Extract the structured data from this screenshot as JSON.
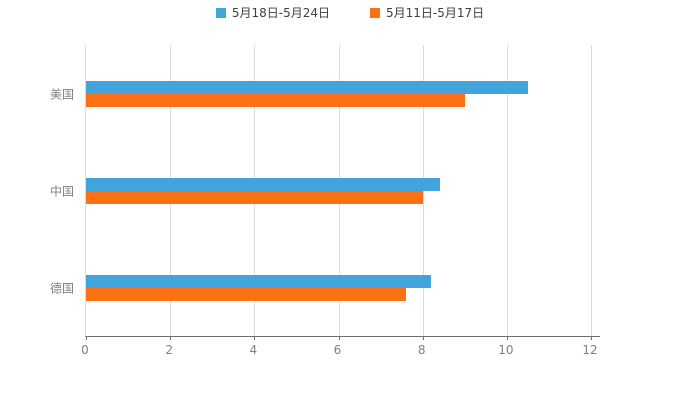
{
  "chart_data": {
    "type": "bar",
    "orientation": "horizontal",
    "title": "",
    "xlabel": "",
    "ylabel": "",
    "categories": [
      "美国",
      "中国",
      "德国"
    ],
    "series": [
      {
        "name": "5月18日-5月24日",
        "color": "#41a4dd",
        "values": [
          10.5,
          8.4,
          8.2
        ]
      },
      {
        "name": "5月11日-5月17日",
        "color": "#fd7014",
        "values": [
          9.0,
          8.0,
          7.6
        ]
      }
    ],
    "xlim": [
      0,
      12
    ],
    "xticks": [
      0,
      2,
      4,
      6,
      8,
      10,
      12
    ],
    "grid": true,
    "legend_position": "top",
    "background": "#ffffff"
  }
}
